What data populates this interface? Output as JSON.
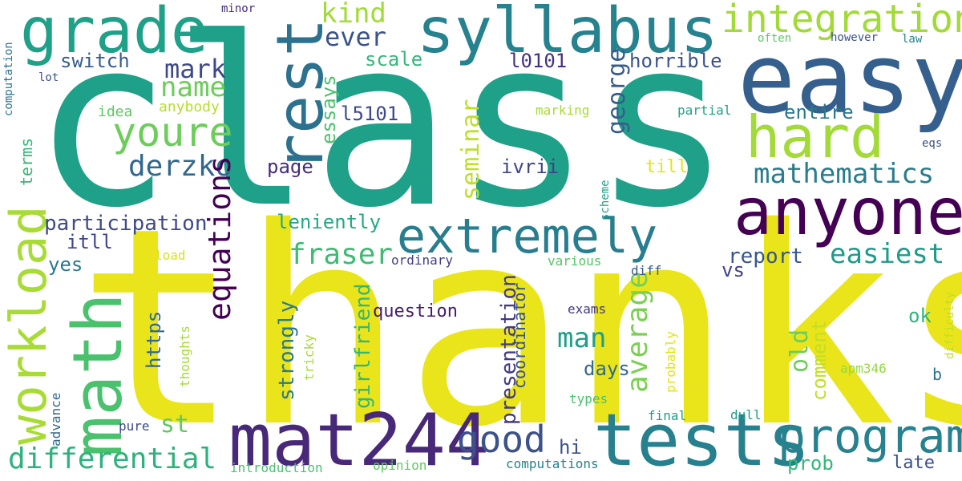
{
  "words": [
    {
      "text": "class",
      "color": "#1fa088"
    },
    {
      "text": "thanks",
      "color": "#e9e51a"
    },
    {
      "text": "easy",
      "color": "#355f8d"
    },
    {
      "text": "tests",
      "color": "#27808e"
    },
    {
      "text": "mat244",
      "color": "#482878"
    },
    {
      "text": "anyone",
      "color": "#440154"
    },
    {
      "text": "grade",
      "color": "#1fa088"
    },
    {
      "text": "syllabus",
      "color": "#26828e"
    },
    {
      "text": "rest",
      "color": "#2c728e"
    },
    {
      "text": "hard",
      "color": "#a2da37"
    },
    {
      "text": "extremely",
      "color": "#287d8e"
    },
    {
      "text": "program",
      "color": "#26828e"
    },
    {
      "text": "math",
      "color": "#4ac16d"
    },
    {
      "text": "workload",
      "color": "#a8db34"
    },
    {
      "text": "integration",
      "color": "#a2da37"
    },
    {
      "text": "youre",
      "color": "#6ccd5a"
    },
    {
      "text": "good",
      "color": "#3b528b"
    },
    {
      "text": "differential",
      "color": "#2db27d"
    },
    {
      "text": "mathematics",
      "color": "#287d8e"
    },
    {
      "text": "derzko",
      "color": "#31688e"
    },
    {
      "text": "fraser",
      "color": "#3dbc74"
    },
    {
      "text": "easiest",
      "color": "#1e9b8a"
    },
    {
      "text": "equations",
      "color": "#440154"
    },
    {
      "text": "average",
      "color": "#7ad151"
    },
    {
      "text": "name",
      "color": "#6ccd5a"
    },
    {
      "text": "mark",
      "color": "#3e4989"
    },
    {
      "text": "kind",
      "color": "#a2da37"
    },
    {
      "text": "ever",
      "color": "#3b528b"
    },
    {
      "text": "man",
      "color": "#1f9e89"
    },
    {
      "text": "george",
      "color": "#365c8d"
    },
    {
      "text": "seminar",
      "color": "#bddf26"
    },
    {
      "text": "old",
      "color": "#6ccd5a"
    },
    {
      "text": "st",
      "color": "#5ec962"
    },
    {
      "text": "girlfriend",
      "color": "#35b779"
    },
    {
      "text": "presentation",
      "color": "#443983"
    },
    {
      "text": "report",
      "color": "#39568c"
    },
    {
      "text": "participation",
      "color": "#3e4989"
    },
    {
      "text": "essays",
      "color": "#4ac16d"
    },
    {
      "text": "switch",
      "color": "#365c8d"
    },
    {
      "text": "scale",
      "color": "#35b779"
    },
    {
      "text": "horrible",
      "color": "#3b528b"
    },
    {
      "text": "entire",
      "color": "#2a788e"
    },
    {
      "text": "l5101",
      "color": "#3e4989"
    },
    {
      "text": "l0101",
      "color": "#46327e"
    },
    {
      "text": "page",
      "color": "#472d7b"
    },
    {
      "text": "ivrii",
      "color": "#414487"
    },
    {
      "text": "leniently",
      "color": "#22a884"
    },
    {
      "text": "strongly",
      "color": "#2a788e"
    },
    {
      "text": "https",
      "color": "#31688e"
    },
    {
      "text": "days",
      "color": "#31688e"
    },
    {
      "text": "comment",
      "color": "#c2df23"
    },
    {
      "text": "question",
      "color": "#481a6c"
    },
    {
      "text": "itll",
      "color": "#414487"
    },
    {
      "text": "yes",
      "color": "#2a788e"
    },
    {
      "text": "vs",
      "color": "#424086"
    },
    {
      "text": "ok",
      "color": "#2fb47c"
    },
    {
      "text": "prob",
      "color": "#35b779"
    },
    {
      "text": "late",
      "color": "#3b528b"
    },
    {
      "text": "hi",
      "color": "#3b528b"
    },
    {
      "text": "coordinator",
      "color": "#3b528b"
    },
    {
      "text": "terms",
      "color": "#35b779"
    },
    {
      "text": "till",
      "color": "#e2e418"
    },
    {
      "text": "b",
      "color": "#2c728e"
    },
    {
      "text": "anybody",
      "color": "#b5de2b"
    },
    {
      "text": "idea",
      "color": "#5ec962"
    },
    {
      "text": "marking",
      "color": "#a8db34"
    },
    {
      "text": "partial",
      "color": "#20a486"
    },
    {
      "text": "ordinary",
      "color": "#433e85"
    },
    {
      "text": "various",
      "color": "#54c568"
    },
    {
      "text": "diff",
      "color": "#38598c"
    },
    {
      "text": "exams",
      "color": "#453781"
    },
    {
      "text": "thoughts",
      "color": "#a5db36"
    },
    {
      "text": "tricky",
      "color": "#a8db34"
    },
    {
      "text": "probably",
      "color": "#e2e418"
    },
    {
      "text": "apm346",
      "color": "#95d840"
    },
    {
      "text": "types",
      "color": "#4ac16d"
    },
    {
      "text": "final",
      "color": "#1e9b8a"
    },
    {
      "text": "dull",
      "color": "#1e9b8a"
    },
    {
      "text": "pure",
      "color": "#3e4989"
    },
    {
      "text": "advance",
      "color": "#31688e"
    },
    {
      "text": "introduction",
      "color": "#4ac16d"
    },
    {
      "text": "opinion",
      "color": "#5ec962"
    },
    {
      "text": "computations",
      "color": "#26828e"
    },
    {
      "text": "computation",
      "color": "#2c728e"
    },
    {
      "text": "lot",
      "color": "#3b528b"
    },
    {
      "text": "minor",
      "color": "#472d7b"
    },
    {
      "text": "often",
      "color": "#5ec962"
    },
    {
      "text": "however",
      "color": "#3b528b"
    },
    {
      "text": "law",
      "color": "#25848e"
    },
    {
      "text": "eqs",
      "color": "#3b528b"
    },
    {
      "text": "difficulty",
      "color": "#bddf26"
    },
    {
      "text": "scheme",
      "color": "#1f9e89"
    },
    {
      "text": "load",
      "color": "#d8e219"
    }
  ]
}
